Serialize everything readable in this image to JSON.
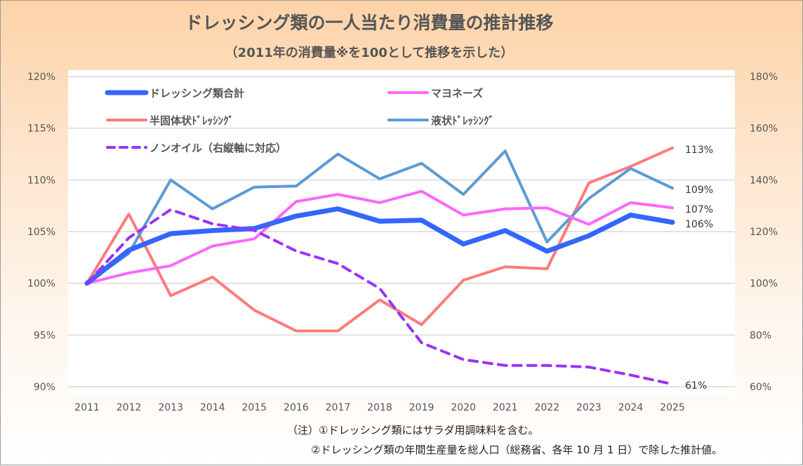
{
  "chart_data": {
    "type": "line",
    "title": "ドレッシング類の一人当たり消費量の推計推移",
    "subtitle": "（2011年の消費量※を100として推移を示した）",
    "x": [
      "2011",
      "2012",
      "2013",
      "2014",
      "2015",
      "2016",
      "2017",
      "2018",
      "2019",
      "2020",
      "2021",
      "2022",
      "2023",
      "2024",
      "2025"
    ],
    "y_left": {
      "ticks": [
        "90%",
        "95%",
        "100%",
        "105%",
        "110%",
        "115%",
        "120%"
      ],
      "range": [
        90,
        120
      ]
    },
    "y_right": {
      "ticks": [
        "60%",
        "80%",
        "100%",
        "120%",
        "140%",
        "160%",
        "180%"
      ],
      "range": [
        60,
        180
      ]
    },
    "grid": true,
    "legend_position": "top",
    "series": [
      {
        "name": "ドレッシング類合計",
        "axis": "left",
        "color": "#3366ff",
        "width": 7,
        "dash": false,
        "end_label": "106%",
        "values": [
          100,
          103.2,
          104.8,
          105.1,
          105.3,
          106.5,
          107.2,
          106.0,
          106.1,
          103.8,
          105.1,
          103.1,
          104.6,
          106.6,
          105.9
        ]
      },
      {
        "name": "マヨネーズ",
        "axis": "left",
        "color": "#ff66ff",
        "width": 4,
        "dash": false,
        "end_label": "107%",
        "values": [
          100,
          101.0,
          101.7,
          103.6,
          104.3,
          107.9,
          108.6,
          107.8,
          108.9,
          106.6,
          107.2,
          107.3,
          105.7,
          107.8,
          107.3
        ]
      },
      {
        "name": "半固体状ﾄﾞﾚｯｼﾝｸﾞ",
        "axis": "left",
        "color": "#ff7b7b",
        "width": 4,
        "dash": false,
        "end_label": "113%",
        "values": [
          100,
          106.7,
          98.8,
          100.6,
          97.4,
          95.4,
          95.4,
          98.4,
          96.0,
          100.3,
          101.6,
          101.4,
          109.7,
          111.3,
          113.1
        ]
      },
      {
        "name": "液状ﾄﾞﾚｯｼﾝｸﾞ",
        "axis": "left",
        "color": "#5b9bd5",
        "width": 4,
        "dash": false,
        "end_label": "109%",
        "values": [
          100,
          102.9,
          110.0,
          107.2,
          109.3,
          109.4,
          112.5,
          110.1,
          111.6,
          108.6,
          112.8,
          104.0,
          108.2,
          111.1,
          109.2
        ]
      },
      {
        "name": "ノンオイル（右縦軸に対応）",
        "axis": "right",
        "color": "#9933ff",
        "width": 4,
        "dash": true,
        "end_label": "61%",
        "values": [
          100,
          117.6,
          128.5,
          123,
          120.5,
          112.5,
          107.6,
          98,
          77,
          70.5,
          68.2,
          68.2,
          67.6,
          64.5,
          61
        ]
      }
    ]
  },
  "notes": {
    "line1": "（注）①ドレッシング類にはサラダ用調味料を含む。",
    "line2": "②ドレッシング類の年間生産量を総人口（総務省、各年 10 月 1 日）で除した推計値。"
  }
}
